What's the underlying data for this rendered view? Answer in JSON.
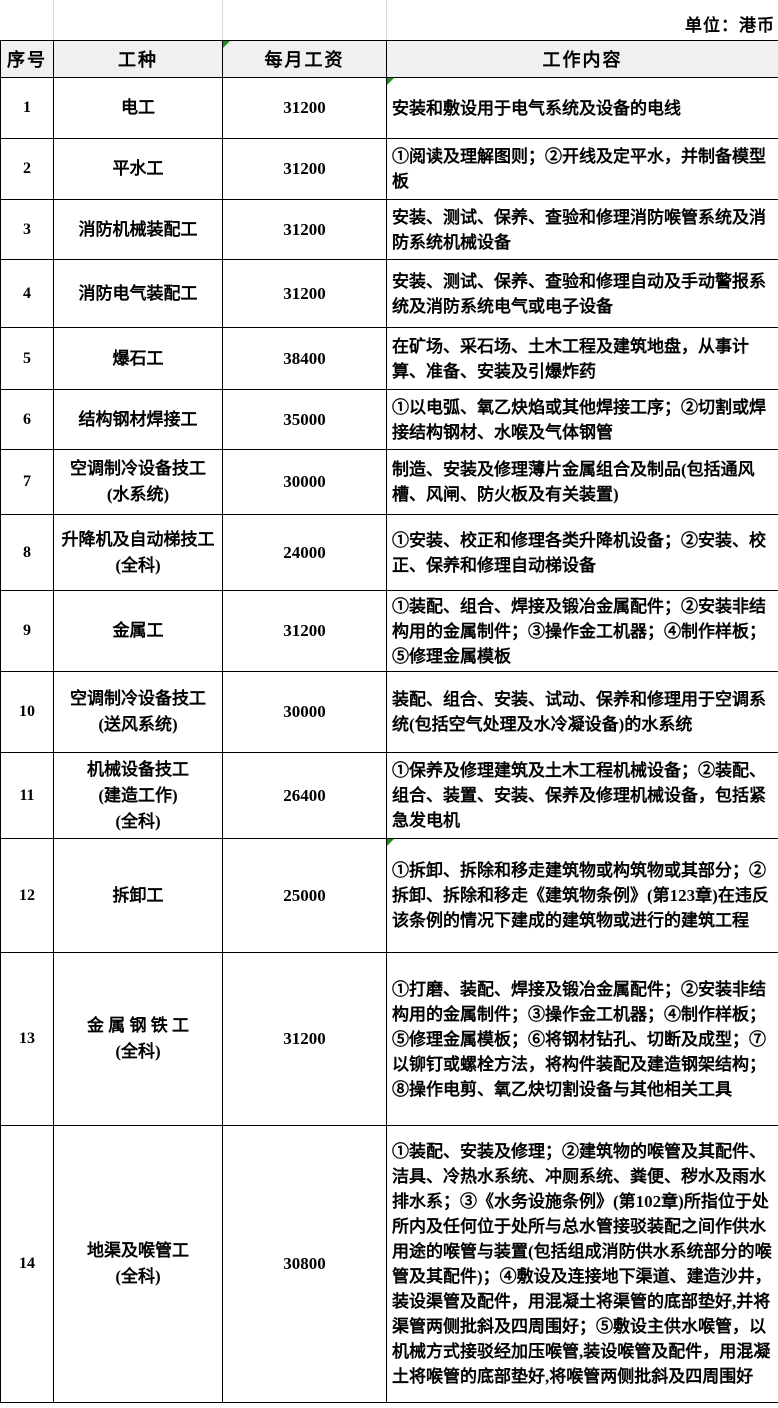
{
  "unit_label": "单位：港币",
  "colors": {
    "header_bg": "#f0f0f0",
    "table_border": "#000000",
    "indicator_green": "#1f8c1f",
    "gridline": "#d9d9d9",
    "text": "#000000"
  },
  "table": {
    "headers": [
      "序号",
      "工种",
      "每月工资",
      "工作内容"
    ],
    "header_indicators": [
      false,
      false,
      true,
      false
    ],
    "rows": [
      {
        "seq": "1",
        "title": "电工",
        "wage": "31200",
        "desc": "安装和敷设用于电气系统及设备的电线",
        "desc_indicator": true
      },
      {
        "seq": "2",
        "title": "平水工",
        "wage": "31200",
        "desc": "①阅读及理解图则；②开线及定平水，并制备模型板",
        "desc_indicator": false
      },
      {
        "seq": "3",
        "title": "消防机械装配工",
        "wage": "31200",
        "desc": "安装、测试、保养、查验和修理消防喉管系统及消防系统机械设备",
        "desc_indicator": false
      },
      {
        "seq": "4",
        "title": "消防电气装配工",
        "wage": "31200",
        "desc": "安装、测试、保养、查验和修理自动及手动警报系统及消防系统电气或电子设备",
        "desc_indicator": false
      },
      {
        "seq": "5",
        "title": "爆石工",
        "wage": "38400",
        "desc": "在矿场、采石场、土木工程及建筑地盘，从事计算、准备、安装及引爆炸药",
        "desc_indicator": false
      },
      {
        "seq": "6",
        "title": "结构钢材焊接工",
        "wage": "35000",
        "desc": "①以电弧、氧乙炔焰或其他焊接工序；②切割或焊接结构钢材、水喉及气体钢管",
        "desc_indicator": false
      },
      {
        "seq": "7",
        "title": "空调制冷设备技工\n(水系统)",
        "wage": "30000",
        "desc": "制造、安装及修理薄片金属组合及制品(包括通风槽、风闸、防火板及有关装置)",
        "desc_indicator": false
      },
      {
        "seq": "8",
        "title": "升降机及自动梯技工\n(全科)",
        "wage": "24000",
        "desc": "①安装、校正和修理各类升降机设备；②安装、校正、保养和修理自动梯设备",
        "desc_indicator": false
      },
      {
        "seq": "9",
        "title": "金属工",
        "wage": "31200",
        "desc": "①装配、组合、焊接及锻冶金属配件；②安装非结构用的金属制件；③操作金工机器；④制作样板；⑤修理金属模板",
        "desc_indicator": false
      },
      {
        "seq": "10",
        "title": "空调制冷设备技工\n(送风系统)",
        "wage": "30000",
        "desc": "装配、组合、安装、试动、保养和修理用于空调系统(包括空气处理及水冷凝设备)的水系统",
        "desc_indicator": false
      },
      {
        "seq": "11",
        "title": "机械设备技工\n(建造工作)\n(全科)",
        "wage": "26400",
        "desc": "①保养及修理建筑及土木工程机械设备；②装配、组合、装置、安装、保养及修理机械设备，包括紧急发电机",
        "desc_indicator": false
      },
      {
        "seq": "12",
        "title": "拆卸工",
        "wage": "25000",
        "desc": "①拆卸、拆除和移走建筑物或构筑物或其部分；②拆卸、拆除和移走《建筑物条例》(第123章)在违反该条例的情况下建成的建筑物或进行的建筑工程",
        "desc_indicator": true
      },
      {
        "seq": "13",
        "title": "金 属 钢 铁 工\n(全科)",
        "wage": "31200",
        "desc": "①打磨、装配、焊接及锻冶金属配件；②安装非结构用的金属制件；③操作金工机器；④制作样板；⑤修理金属模板；⑥将钢材钻孔、切断及成型；⑦以铆钉或螺栓方法，将构件装配及建造钢架结构；⑧操作电剪、氧乙炔切割设备与其他相关工具",
        "desc_indicator": false
      },
      {
        "seq": "14",
        "title": "地渠及喉管工\n(全科)",
        "wage": "30800",
        "desc": "①装配、安装及修理；②建筑物的喉管及其配件、洁具、冷热水系统、冲厕系统、粪便、秽水及雨水排水系；③《水务设施条例》(第102章)所指位于处所内及任何位于处所与总水管接驳装配之间作供水用途的喉管与装置(包括组成消防供水系统部分的喉管及其配件)；④敷设及连接地下渠道、建造沙井，装设渠管及配件，用混凝土将渠管的底部垫好,并将渠管两侧批斜及四周围好；⑤敷设主供水喉管，以机械方式接驳经加压喉管,装设喉管及配件，用混凝土将喉管的底部垫好,将喉管两侧批斜及四周围好",
        "desc_indicator": false
      }
    ]
  }
}
